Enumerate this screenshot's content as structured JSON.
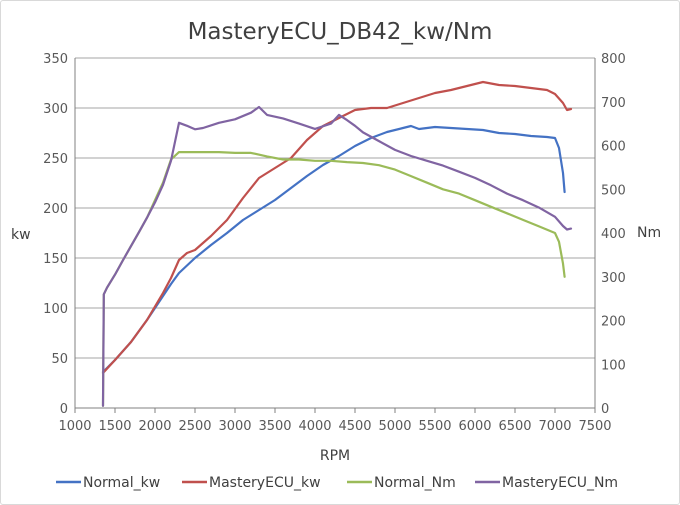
{
  "chart_data": {
    "type": "line",
    "title": "MasteryECU_DB42_kw/Nm",
    "xlabel": "RPM",
    "ylabel_left": "kw",
    "ylabel_right": "Nm",
    "xlim": [
      1000,
      7500
    ],
    "ylim_left": [
      0,
      350
    ],
    "ylim_right": [
      0,
      800
    ],
    "x_ticks": [
      "1000",
      "1500",
      "2000",
      "2500",
      "3000",
      "3500",
      "4000",
      "4500",
      "5000",
      "5500",
      "6000",
      "6500",
      "7000",
      "7500"
    ],
    "y_left_ticks": [
      "0",
      "50",
      "100",
      "150",
      "200",
      "250",
      "300",
      "350"
    ],
    "y_right_ticks": [
      "0",
      "100",
      "200",
      "300",
      "400",
      "500",
      "600",
      "700",
      "800"
    ],
    "grid": "horizontal",
    "legend_position": "bottom",
    "series": [
      {
        "name": "Normal_kw",
        "axis": "left",
        "color": "#4472c4",
        "x": [
          1350,
          1500,
          1700,
          1900,
          2100,
          2200,
          2300,
          2500,
          2700,
          2900,
          3100,
          3300,
          3500,
          3700,
          3900,
          4100,
          4300,
          4500,
          4700,
          4900,
          5100,
          5200,
          5300,
          5500,
          5700,
          5900,
          6100,
          6300,
          6500,
          6700,
          6900,
          7000,
          7050,
          7100,
          7120
        ],
        "values": [
          36,
          48,
          66,
          88,
          112,
          124,
          135,
          150,
          163,
          175,
          188,
          198,
          208,
          220,
          232,
          243,
          252,
          262,
          270,
          276,
          280,
          282,
          279,
          281,
          280,
          279,
          278,
          275,
          274,
          272,
          271,
          270,
          260,
          235,
          216
        ]
      },
      {
        "name": "MasteryECU_kw",
        "axis": "left",
        "color": "#c0504d",
        "x": [
          1350,
          1500,
          1700,
          1900,
          2100,
          2200,
          2300,
          2400,
          2500,
          2700,
          2900,
          3100,
          3300,
          3500,
          3700,
          3900,
          4100,
          4300,
          4500,
          4700,
          4900,
          5100,
          5300,
          5500,
          5700,
          5900,
          6100,
          6300,
          6500,
          6700,
          6900,
          7000,
          7100,
          7150,
          7200
        ],
        "values": [
          35,
          48,
          66,
          88,
          115,
          130,
          148,
          155,
          158,
          172,
          188,
          210,
          230,
          240,
          250,
          268,
          282,
          290,
          298,
          300,
          300,
          305,
          310,
          315,
          318,
          322,
          326,
          323,
          322,
          320,
          318,
          314,
          305,
          298,
          299
        ]
      },
      {
        "name": "Normal_Nm",
        "axis": "right",
        "color": "#9bbb59",
        "x": [
          1350,
          1360,
          1400,
          1500,
          1600,
          1700,
          1800,
          1900,
          2000,
          2100,
          2200,
          2300,
          2400,
          2500,
          2600,
          2800,
          3000,
          3200,
          3400,
          3600,
          3800,
          4000,
          4200,
          4400,
          4600,
          4800,
          5000,
          5200,
          5400,
          5600,
          5800,
          6000,
          6200,
          6400,
          6600,
          6800,
          7000,
          7050,
          7100,
          7120
        ],
        "values": [
          5,
          260,
          275,
          305,
          338,
          370,
          402,
          435,
          475,
          515,
          568,
          585,
          585,
          585,
          585,
          585,
          583,
          583,
          575,
          568,
          568,
          565,
          565,
          562,
          560,
          555,
          545,
          530,
          515,
          500,
          490,
          475,
          460,
          445,
          430,
          415,
          400,
          380,
          330,
          300
        ]
      },
      {
        "name": "MasteryECU_Nm",
        "axis": "right",
        "color": "#8064a2",
        "x": [
          1350,
          1360,
          1400,
          1500,
          1600,
          1700,
          1800,
          1900,
          2000,
          2100,
          2200,
          2300,
          2400,
          2500,
          2600,
          2800,
          3000,
          3200,
          3300,
          3400,
          3600,
          3800,
          4000,
          4200,
          4300,
          4400,
          4500,
          4600,
          4800,
          5000,
          5200,
          5400,
          5600,
          5800,
          6000,
          6200,
          6400,
          6600,
          6800,
          7000,
          7100,
          7150,
          7200
        ],
        "values": [
          5,
          260,
          275,
          305,
          338,
          370,
          402,
          435,
          470,
          510,
          565,
          652,
          645,
          637,
          640,
          652,
          660,
          675,
          688,
          670,
          662,
          650,
          638,
          650,
          670,
          658,
          645,
          630,
          610,
          590,
          576,
          565,
          554,
          540,
          526,
          509,
          490,
          475,
          458,
          437,
          416,
          408,
          410
        ]
      }
    ]
  }
}
